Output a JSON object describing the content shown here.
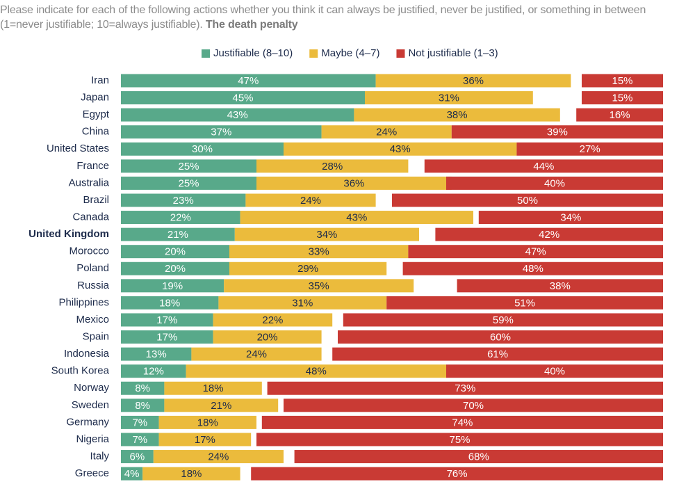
{
  "chart_data": {
    "type": "bar",
    "title": "Please indicate for each of the following actions whether you think it can always be justified, never be justified, or something in between (1=never justifiable; 10=always justifiable).",
    "subtitle": "The death penalty",
    "categories": [
      "Iran",
      "Japan",
      "Egypt",
      "China",
      "United States",
      "France",
      "Australia",
      "Brazil",
      "Canada",
      "United Kingdom",
      "Morocco",
      "Poland",
      "Russia",
      "Philippines",
      "Mexico",
      "Spain",
      "Indonesia",
      "South Korea",
      "Norway",
      "Sweden",
      "Germany",
      "Nigeria",
      "Italy",
      "Greece"
    ],
    "highlight_index": 9,
    "legend": "top",
    "series": [
      {
        "name": "Justifiable (8–10)",
        "color": "#58a98a",
        "align": "left",
        "values": [
          47,
          45,
          43,
          37,
          30,
          25,
          25,
          23,
          22,
          21,
          20,
          20,
          19,
          18,
          17,
          17,
          13,
          12,
          8,
          8,
          7,
          7,
          6,
          4
        ],
        "value_labels": [
          "47%",
          "45%",
          "43%",
          "37%",
          "30%",
          "25%",
          "25%",
          "23%",
          "22%",
          "21%",
          "20%",
          "20%",
          "19%",
          "18%",
          "17%",
          "17%",
          "13%",
          "12%",
          "8%",
          "8%",
          "7%",
          "7%",
          "6%",
          "4%"
        ]
      },
      {
        "name": "Maybe (4–7)",
        "color": "#ebbb3c",
        "align": "left",
        "values": [
          36,
          31,
          38,
          24,
          43,
          28,
          36,
          24,
          43,
          34,
          33,
          29,
          35,
          31,
          22,
          20,
          24,
          48,
          18,
          21,
          18,
          17,
          24,
          18
        ],
        "value_labels": [
          "36%",
          "31%",
          "38%",
          "24%",
          "43%",
          "28%",
          "36%",
          "24%",
          "43%",
          "34%",
          "33%",
          "29%",
          "35%",
          "31%",
          "22%",
          "20%",
          "24%",
          "48%",
          "18%",
          "21%",
          "18%",
          "17%",
          "24%",
          "18%"
        ]
      },
      {
        "name": "Not justifiable (1–3)",
        "color": "#c93a34",
        "align": "right",
        "values": [
          15,
          15,
          16,
          39,
          27,
          44,
          40,
          50,
          34,
          42,
          47,
          48,
          38,
          51,
          59,
          60,
          61,
          40,
          73,
          70,
          74,
          75,
          68,
          76
        ],
        "value_labels": [
          "15%",
          "15%",
          "16%",
          "39%",
          "27%",
          "44%",
          "40%",
          "50%",
          "34%",
          "42%",
          "47%",
          "48%",
          "38%",
          "51%",
          "59%",
          "60%",
          "61%",
          "40%",
          "73%",
          "70%",
          "74%",
          "75%",
          "68%",
          "76%"
        ]
      }
    ]
  }
}
